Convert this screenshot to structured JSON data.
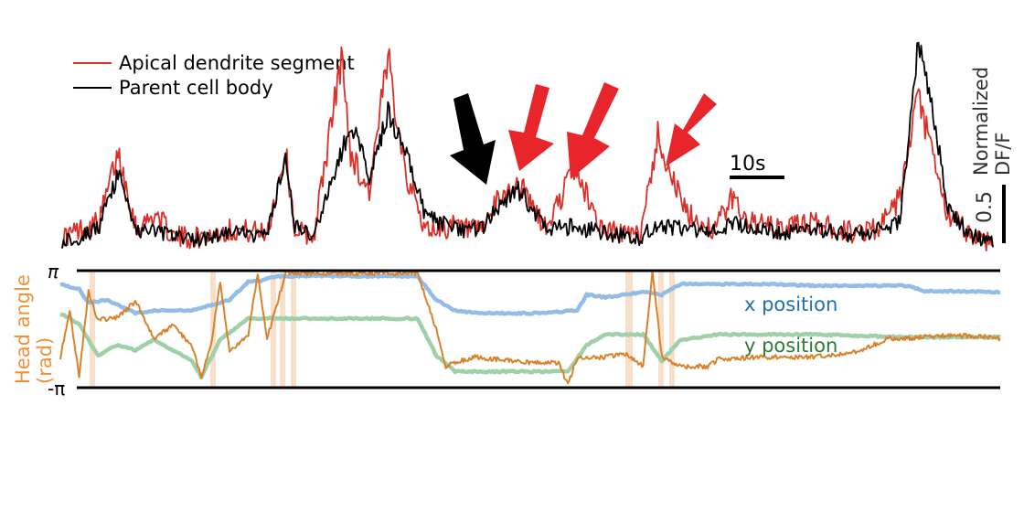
{
  "legend": {
    "dendrite_label": "Apical dendrite segment",
    "soma_label": "Parent cell body"
  },
  "scalebar": {
    "time_label": "10s",
    "amp_value": "0.5",
    "amp_unit_line1": "Normalized",
    "amp_unit_line2": "DF/F"
  },
  "head_angle": {
    "ylabel_line1": "Head angle",
    "ylabel_line2": "(rad)",
    "tick_top": "π",
    "tick_bottom": "-π"
  },
  "position_labels": {
    "x_label": "x position",
    "y_label": "y position"
  },
  "colors": {
    "dendrite": "#d9302a",
    "soma": "#000000",
    "arrow_soma": "#000000",
    "arrow_dendrite": "#e8252b",
    "head_angle": "#d9822b",
    "x_position": "#93bde6",
    "y_position": "#9fd0a8",
    "x_label": "#1f6fb4",
    "y_label": "#2e7a37",
    "ylabel": "#f0913a",
    "highlight": "#f7dcc4"
  },
  "chart_data": [
    {
      "type": "line",
      "title": "",
      "series": [
        {
          "name": "Apical dendrite segment",
          "x": [
            0,
            2,
            4,
            6,
            7,
            8,
            10,
            12,
            15,
            18,
            22,
            24,
            25,
            27,
            30,
            31,
            32,
            33,
            35,
            37,
            39,
            42,
            45,
            47,
            49,
            50,
            52,
            55,
            58,
            60,
            62,
            64,
            67,
            70,
            72,
            74,
            77,
            80,
            85,
            88,
            90,
            92,
            94,
            95,
            97,
            98,
            100
          ],
          "values": [
            0.05,
            0.1,
            0.15,
            0.6,
            0.35,
            0.1,
            0.2,
            0.05,
            0.05,
            0.1,
            0.08,
            0.6,
            0.1,
            0.05,
            1.2,
            0.6,
            0.45,
            0.35,
            1.2,
            0.45,
            0.1,
            0.12,
            0.08,
            0.3,
            0.4,
            0.3,
            0.1,
            0.5,
            0.1,
            0.08,
            0.05,
            0.7,
            0.2,
            0.1,
            0.3,
            0.15,
            0.1,
            0.15,
            0.08,
            0.12,
            0.3,
            0.95,
            0.45,
            0.2,
            0.1,
            0.05,
            0.02
          ]
        },
        {
          "name": "Parent cell body",
          "x": [
            0,
            2,
            4,
            6,
            7,
            8,
            10,
            12,
            15,
            18,
            22,
            24,
            25,
            27,
            30,
            31,
            32,
            33,
            35,
            37,
            39,
            42,
            45,
            47,
            49,
            50,
            52,
            55,
            58,
            60,
            62,
            64,
            67,
            70,
            72,
            74,
            77,
            80,
            85,
            88,
            90,
            92,
            94,
            95,
            97,
            98,
            100
          ],
          "values": [
            0.03,
            0.05,
            0.12,
            0.45,
            0.3,
            0.08,
            0.1,
            0.05,
            0.04,
            0.08,
            0.06,
            0.55,
            0.12,
            0.05,
            0.6,
            0.75,
            0.65,
            0.45,
            0.85,
            0.6,
            0.2,
            0.1,
            0.1,
            0.25,
            0.35,
            0.28,
            0.1,
            0.12,
            0.08,
            0.06,
            0.05,
            0.12,
            0.1,
            0.08,
            0.15,
            0.12,
            0.08,
            0.1,
            0.07,
            0.1,
            0.15,
            1.3,
            0.7,
            0.25,
            0.1,
            0.05,
            0.03
          ]
        }
      ],
      "annotations": [
        "black arrow over cell-body event",
        "red arrows over three dendrite-only events"
      ]
    },
    {
      "type": "line",
      "ylabel": "Head angle (rad)",
      "ylim": [
        "-π",
        "π"
      ],
      "series": [
        {
          "name": "x position",
          "x": [
            0,
            2,
            3,
            5,
            8,
            10,
            14,
            16,
            18,
            20,
            21,
            23,
            30,
            38,
            40,
            42,
            45,
            50,
            55,
            56,
            58,
            62,
            64,
            66,
            70,
            75,
            80,
            90,
            92,
            100
          ],
          "values": [
            0.85,
            0.75,
            0.5,
            0.55,
            0.3,
            0.35,
            0.35,
            0.45,
            0.55,
            0.9,
            0.9,
            1.0,
            1.0,
            1.0,
            0.55,
            0.35,
            0.3,
            0.3,
            0.35,
            0.65,
            0.6,
            0.7,
            0.65,
            0.85,
            0.85,
            0.85,
            0.82,
            0.82,
            0.72,
            0.7
          ]
        },
        {
          "name": "y position",
          "x": [
            0,
            2,
            4,
            6,
            8,
            10,
            14,
            15,
            17,
            20,
            22,
            30,
            38,
            40,
            42,
            50,
            54,
            56,
            58,
            60,
            62,
            64,
            66,
            70,
            80,
            90,
            92,
            100
          ],
          "values": [
            0.3,
            0.1,
            -0.5,
            -0.3,
            -0.4,
            -0.2,
            -0.6,
            -0.9,
            -0.2,
            0.2,
            0.2,
            0.2,
            0.2,
            -0.5,
            -0.8,
            -0.8,
            -0.8,
            -0.3,
            -0.1,
            -0.1,
            -0.1,
            -0.6,
            -0.2,
            -0.1,
            -0.1,
            -0.15,
            -0.15,
            -0.15
          ]
        },
        {
          "name": "Head angle",
          "x": [
            0,
            1,
            2,
            3,
            4,
            6,
            8,
            10,
            12,
            14,
            15,
            16,
            17,
            18,
            20,
            21,
            22,
            24,
            38,
            40,
            41,
            42,
            44,
            50,
            53,
            54,
            55,
            58,
            60,
            62,
            63,
            64,
            66,
            69,
            70,
            75,
            80,
            85,
            88,
            90,
            95,
            100
          ],
          "values": [
            -1.5,
            1.0,
            -2.5,
            2.0,
            0.5,
            0.6,
            1.5,
            -0.5,
            0.2,
            -0.9,
            -2.5,
            -1.0,
            2.5,
            -1.2,
            -0.3,
            3.0,
            -0.5,
            3.0,
            3.0,
            0.0,
            -2.0,
            -1.8,
            -1.5,
            -1.8,
            -1.8,
            -3.0,
            -1.5,
            -1.5,
            -1.3,
            -2.0,
            3.1,
            -1.5,
            -2.0,
            -2.0,
            -1.6,
            -1.5,
            -1.5,
            -1.2,
            -0.5,
            -0.5,
            -0.3,
            -0.5
          ]
        }
      ]
    }
  ]
}
